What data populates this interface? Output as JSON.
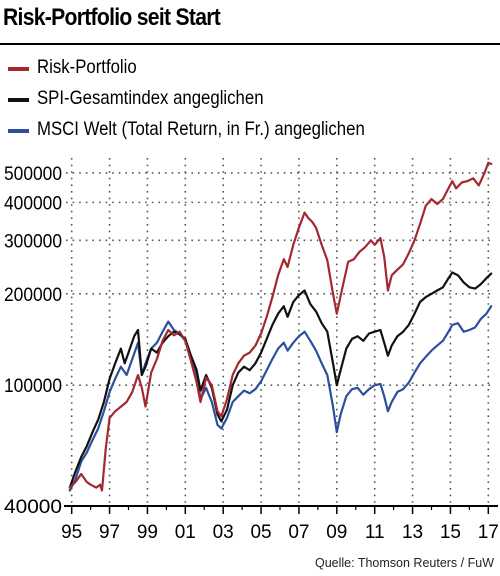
{
  "colors": {
    "risk": "#a3282f",
    "spi": "#111111",
    "msci": "#2c4f9e",
    "grid": "#555555"
  },
  "chart_data": {
    "type": "line",
    "title": "Risk-Portfolio seit Start",
    "yscale": "log",
    "ylim": [
      40000,
      560000
    ],
    "yticks": [
      40000,
      100000,
      200000,
      300000,
      400000,
      500000
    ],
    "ytick_labels": [
      "40000",
      "100000",
      "200000",
      "300000",
      "400000",
      "500000"
    ],
    "xlim": [
      1994.7,
      2017.3
    ],
    "xticks": [
      1995,
      1997,
      1999,
      2001,
      2003,
      2005,
      2007,
      2009,
      2011,
      2013,
      2015,
      2017
    ],
    "xtick_labels": [
      "95",
      "97",
      "99",
      "01",
      "03",
      "05",
      "07",
      "09",
      "11",
      "13",
      "15",
      "17"
    ],
    "grid": true,
    "legend_position": "top-left",
    "series": [
      {
        "name": "Risk-Portfolio",
        "color_key": "risk",
        "points": [
          [
            1994.9,
            46000
          ],
          [
            1995.2,
            48000
          ],
          [
            1995.5,
            51000
          ],
          [
            1995.8,
            48000
          ],
          [
            1996.0,
            47000
          ],
          [
            1996.3,
            46000
          ],
          [
            1996.5,
            47000
          ],
          [
            1996.6,
            45000
          ],
          [
            1996.8,
            62000
          ],
          [
            1997.0,
            78000
          ],
          [
            1997.3,
            82000
          ],
          [
            1997.6,
            85000
          ],
          [
            1997.9,
            88000
          ],
          [
            1998.2,
            95000
          ],
          [
            1998.5,
            108000
          ],
          [
            1998.7,
            98000
          ],
          [
            1998.9,
            85000
          ],
          [
            1999.2,
            110000
          ],
          [
            1999.5,
            122000
          ],
          [
            1999.8,
            140000
          ],
          [
            2000.1,
            152000
          ],
          [
            2000.4,
            146000
          ],
          [
            2000.7,
            150000
          ],
          [
            2001.0,
            140000
          ],
          [
            2001.3,
            120000
          ],
          [
            2001.6,
            102000
          ],
          [
            2001.8,
            88000
          ],
          [
            2002.1,
            106000
          ],
          [
            2002.4,
            100000
          ],
          [
            2002.7,
            82000
          ],
          [
            2002.9,
            79000
          ],
          [
            2003.2,
            90000
          ],
          [
            2003.5,
            108000
          ],
          [
            2003.8,
            118000
          ],
          [
            2004.1,
            125000
          ],
          [
            2004.4,
            128000
          ],
          [
            2004.7,
            135000
          ],
          [
            2005.0,
            148000
          ],
          [
            2005.3,
            168000
          ],
          [
            2005.6,
            195000
          ],
          [
            2005.9,
            230000
          ],
          [
            2006.2,
            260000
          ],
          [
            2006.4,
            245000
          ],
          [
            2006.7,
            290000
          ],
          [
            2007.0,
            330000
          ],
          [
            2007.3,
            370000
          ],
          [
            2007.5,
            355000
          ],
          [
            2007.7,
            345000
          ],
          [
            2007.9,
            330000
          ],
          [
            2008.2,
            290000
          ],
          [
            2008.5,
            258000
          ],
          [
            2008.8,
            200000
          ],
          [
            2009.0,
            172000
          ],
          [
            2009.3,
            210000
          ],
          [
            2009.6,
            255000
          ],
          [
            2009.9,
            260000
          ],
          [
            2010.2,
            275000
          ],
          [
            2010.5,
            285000
          ],
          [
            2010.8,
            300000
          ],
          [
            2011.0,
            290000
          ],
          [
            2011.3,
            305000
          ],
          [
            2011.5,
            265000
          ],
          [
            2011.7,
            205000
          ],
          [
            2011.9,
            230000
          ],
          [
            2012.2,
            240000
          ],
          [
            2012.5,
            250000
          ],
          [
            2012.8,
            272000
          ],
          [
            2013.1,
            300000
          ],
          [
            2013.4,
            340000
          ],
          [
            2013.7,
            390000
          ],
          [
            2014.0,
            410000
          ],
          [
            2014.3,
            395000
          ],
          [
            2014.6,
            410000
          ],
          [
            2014.9,
            445000
          ],
          [
            2015.1,
            470000
          ],
          [
            2015.3,
            445000
          ],
          [
            2015.6,
            465000
          ],
          [
            2015.9,
            470000
          ],
          [
            2016.2,
            480000
          ],
          [
            2016.5,
            455000
          ],
          [
            2016.8,
            500000
          ],
          [
            2017.0,
            540000
          ],
          [
            2017.15,
            535000
          ]
        ]
      },
      {
        "name": "SPI-Gesamtindex angeglichen",
        "color_key": "spi",
        "points": [
          [
            1994.9,
            46000
          ],
          [
            1995.2,
            52000
          ],
          [
            1995.5,
            58000
          ],
          [
            1995.8,
            63000
          ],
          [
            1996.1,
            70000
          ],
          [
            1996.4,
            77000
          ],
          [
            1996.7,
            88000
          ],
          [
            1997.0,
            105000
          ],
          [
            1997.3,
            118000
          ],
          [
            1997.6,
            132000
          ],
          [
            1997.8,
            118000
          ],
          [
            1998.0,
            128000
          ],
          [
            1998.3,
            145000
          ],
          [
            1998.5,
            152000
          ],
          [
            1998.7,
            108000
          ],
          [
            1998.9,
            115000
          ],
          [
            1999.2,
            132000
          ],
          [
            1999.5,
            128000
          ],
          [
            1999.8,
            138000
          ],
          [
            2000.1,
            145000
          ],
          [
            2000.4,
            150000
          ],
          [
            2000.7,
            147000
          ],
          [
            2001.0,
            142000
          ],
          [
            2001.3,
            125000
          ],
          [
            2001.6,
            112000
          ],
          [
            2001.8,
            96000
          ],
          [
            2002.1,
            108000
          ],
          [
            2002.4,
            98000
          ],
          [
            2002.7,
            80000
          ],
          [
            2002.9,
            76000
          ],
          [
            2003.2,
            83000
          ],
          [
            2003.5,
            100000
          ],
          [
            2003.8,
            110000
          ],
          [
            2004.1,
            115000
          ],
          [
            2004.4,
            112000
          ],
          [
            2004.7,
            118000
          ],
          [
            2005.0,
            128000
          ],
          [
            2005.3,
            142000
          ],
          [
            2005.6,
            158000
          ],
          [
            2005.9,
            172000
          ],
          [
            2006.2,
            182000
          ],
          [
            2006.4,
            168000
          ],
          [
            2006.7,
            188000
          ],
          [
            2007.0,
            198000
          ],
          [
            2007.3,
            205000
          ],
          [
            2007.6,
            185000
          ],
          [
            2007.9,
            175000
          ],
          [
            2008.2,
            160000
          ],
          [
            2008.5,
            150000
          ],
          [
            2008.8,
            118000
          ],
          [
            2009.0,
            100000
          ],
          [
            2009.2,
            112000
          ],
          [
            2009.5,
            132000
          ],
          [
            2009.8,
            142000
          ],
          [
            2010.1,
            145000
          ],
          [
            2010.4,
            140000
          ],
          [
            2010.7,
            148000
          ],
          [
            2011.0,
            150000
          ],
          [
            2011.3,
            152000
          ],
          [
            2011.5,
            138000
          ],
          [
            2011.7,
            125000
          ],
          [
            2011.9,
            135000
          ],
          [
            2012.2,
            145000
          ],
          [
            2012.5,
            150000
          ],
          [
            2012.8,
            158000
          ],
          [
            2013.1,
            172000
          ],
          [
            2013.4,
            188000
          ],
          [
            2013.7,
            195000
          ],
          [
            2014.0,
            200000
          ],
          [
            2014.3,
            205000
          ],
          [
            2014.6,
            210000
          ],
          [
            2014.9,
            225000
          ],
          [
            2015.1,
            235000
          ],
          [
            2015.4,
            230000
          ],
          [
            2015.7,
            218000
          ],
          [
            2016.0,
            210000
          ],
          [
            2016.3,
            208000
          ],
          [
            2016.6,
            215000
          ],
          [
            2016.9,
            225000
          ],
          [
            2017.15,
            233000
          ]
        ]
      },
      {
        "name": "MSCI Welt (Total Return, in Fr.) angeglichen",
        "color_key": "msci",
        "points": [
          [
            1994.9,
            45000
          ],
          [
            1995.2,
            49000
          ],
          [
            1995.5,
            56000
          ],
          [
            1995.8,
            60000
          ],
          [
            1996.1,
            66000
          ],
          [
            1996.4,
            72000
          ],
          [
            1996.7,
            82000
          ],
          [
            1997.0,
            95000
          ],
          [
            1997.3,
            105000
          ],
          [
            1997.6,
            115000
          ],
          [
            1997.9,
            108000
          ],
          [
            1998.2,
            122000
          ],
          [
            1998.5,
            138000
          ],
          [
            1998.7,
            108000
          ],
          [
            1998.9,
            118000
          ],
          [
            1999.2,
            132000
          ],
          [
            1999.5,
            138000
          ],
          [
            1999.8,
            150000
          ],
          [
            2000.1,
            162000
          ],
          [
            2000.4,
            152000
          ],
          [
            2000.7,
            148000
          ],
          [
            2001.0,
            140000
          ],
          [
            2001.3,
            122000
          ],
          [
            2001.6,
            108000
          ],
          [
            2001.8,
            90000
          ],
          [
            2002.1,
            98000
          ],
          [
            2002.4,
            88000
          ],
          [
            2002.7,
            74000
          ],
          [
            2002.9,
            72000
          ],
          [
            2003.2,
            78000
          ],
          [
            2003.5,
            88000
          ],
          [
            2003.8,
            92000
          ],
          [
            2004.1,
            96000
          ],
          [
            2004.4,
            94000
          ],
          [
            2004.7,
            97000
          ],
          [
            2005.0,
            103000
          ],
          [
            2005.3,
            112000
          ],
          [
            2005.6,
            122000
          ],
          [
            2005.9,
            132000
          ],
          [
            2006.2,
            138000
          ],
          [
            2006.4,
            130000
          ],
          [
            2006.7,
            138000
          ],
          [
            2007.0,
            145000
          ],
          [
            2007.3,
            150000
          ],
          [
            2007.6,
            140000
          ],
          [
            2007.9,
            130000
          ],
          [
            2008.2,
            118000
          ],
          [
            2008.5,
            108000
          ],
          [
            2008.8,
            85000
          ],
          [
            2009.0,
            70000
          ],
          [
            2009.2,
            80000
          ],
          [
            2009.5,
            92000
          ],
          [
            2009.8,
            97000
          ],
          [
            2010.1,
            98000
          ],
          [
            2010.4,
            93000
          ],
          [
            2010.7,
            97000
          ],
          [
            2011.0,
            100000
          ],
          [
            2011.3,
            101000
          ],
          [
            2011.5,
            92000
          ],
          [
            2011.7,
            82000
          ],
          [
            2011.9,
            88000
          ],
          [
            2012.2,
            95000
          ],
          [
            2012.5,
            97000
          ],
          [
            2012.8,
            102000
          ],
          [
            2013.1,
            110000
          ],
          [
            2013.4,
            118000
          ],
          [
            2013.7,
            124000
          ],
          [
            2014.0,
            130000
          ],
          [
            2014.3,
            135000
          ],
          [
            2014.6,
            140000
          ],
          [
            2014.9,
            150000
          ],
          [
            2015.1,
            158000
          ],
          [
            2015.4,
            160000
          ],
          [
            2015.7,
            150000
          ],
          [
            2016.0,
            152000
          ],
          [
            2016.3,
            155000
          ],
          [
            2016.6,
            165000
          ],
          [
            2016.9,
            172000
          ],
          [
            2017.15,
            182000
          ]
        ]
      }
    ],
    "source": "Quelle: Thomson Reuters / FuW"
  }
}
